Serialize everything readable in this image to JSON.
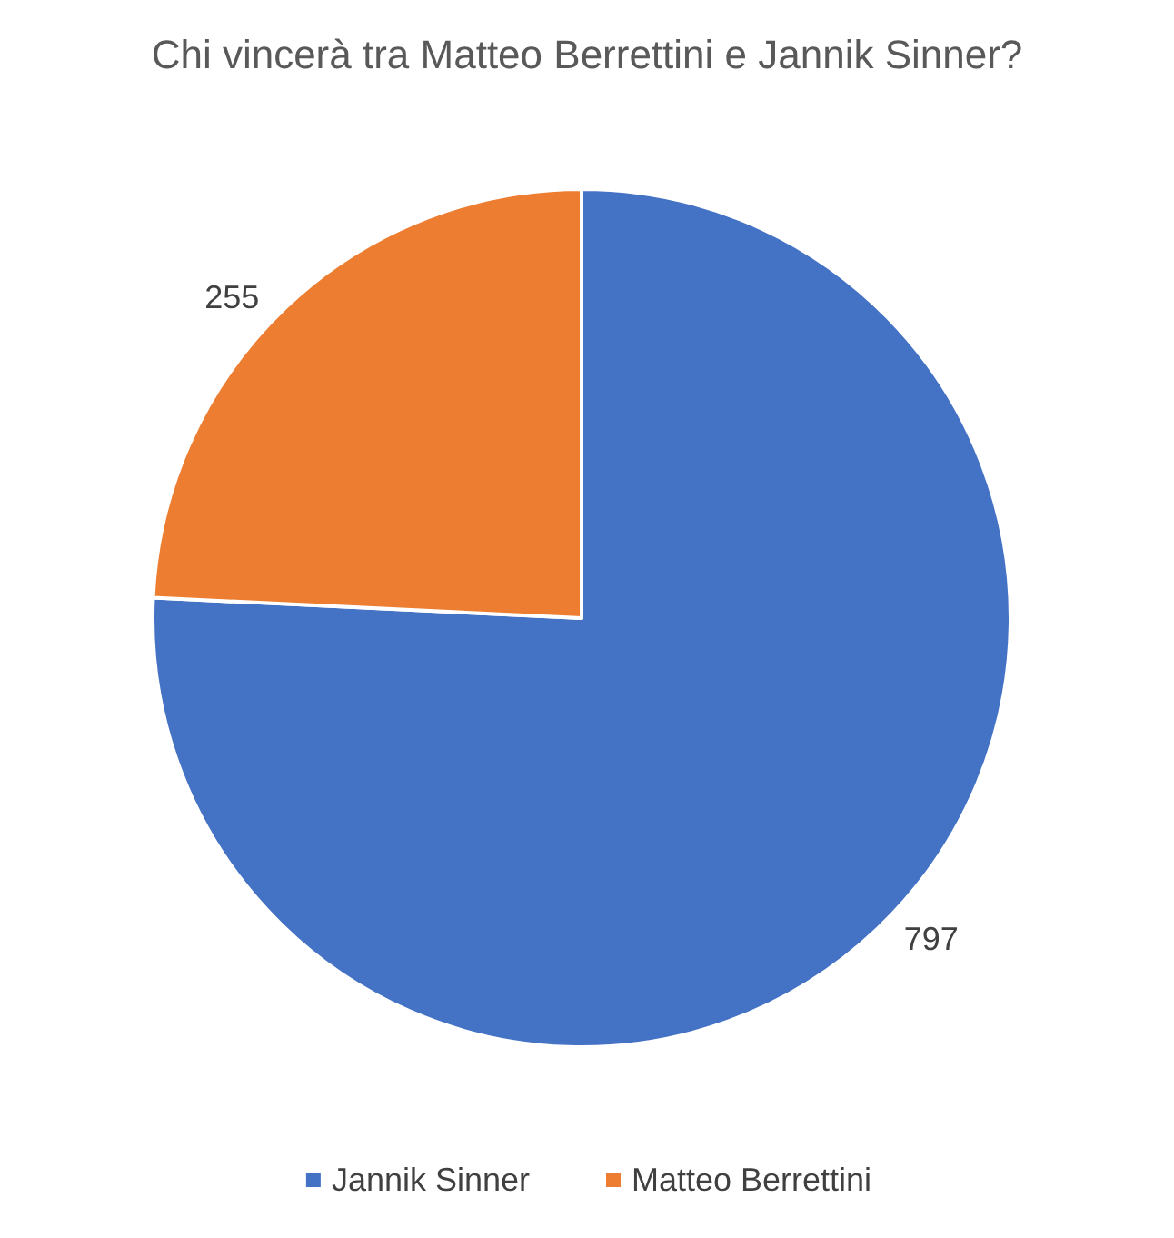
{
  "chart_data": {
    "type": "pie",
    "title": "Chi vincerà tra Matteo Berrettini e Jannik Sinner?",
    "categories": [
      "Jannik Sinner",
      "Matteo Berrettini"
    ],
    "values": [
      797,
      255
    ],
    "colors": [
      "#4472c4",
      "#ed7d31"
    ],
    "data_labels": true,
    "legend": "bottom"
  }
}
